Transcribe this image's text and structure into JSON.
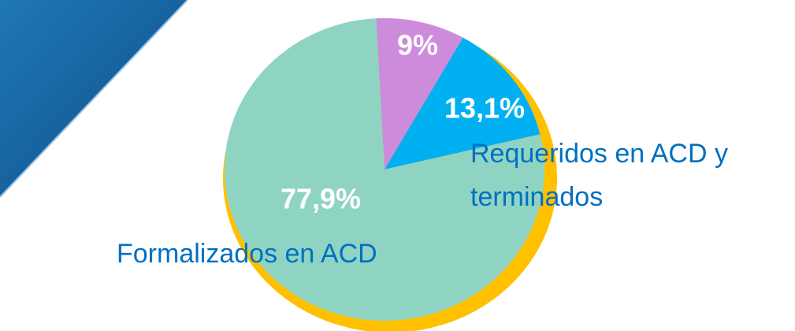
{
  "chart_data": {
    "type": "pie",
    "categories": [
      null,
      "Requeridos en ACD y terminados",
      "Formalizados en ACD"
    ],
    "values": [
      9,
      13.1,
      77.9
    ],
    "value_labels": [
      "9%",
      "13,1%",
      "77,9%"
    ],
    "colors": [
      "#cd8bdb",
      "#00b0f0",
      "#8fd4c3"
    ],
    "ring_color": "#ffc000"
  }
}
